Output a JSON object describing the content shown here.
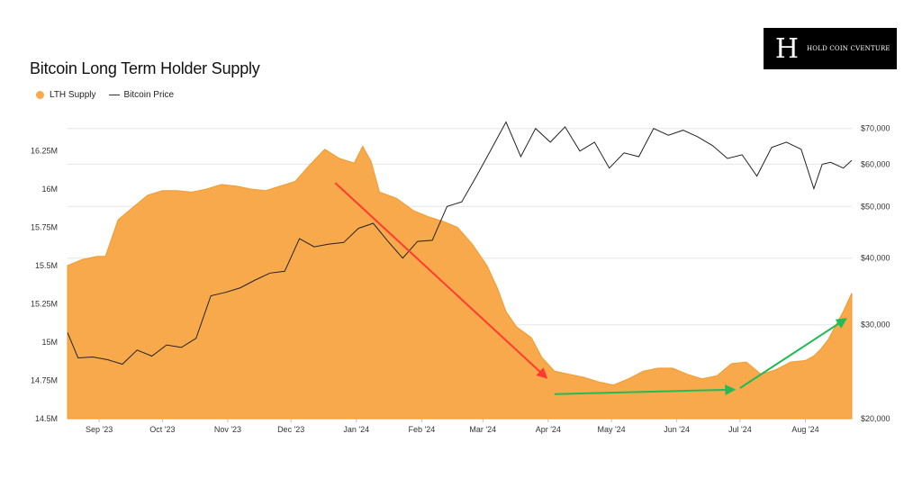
{
  "title": "Bitcoin Long Term Holder Supply",
  "logo": {
    "text": "HOLD COIN CVENTURE"
  },
  "legend": {
    "lth": "LTH Supply",
    "price": "Bitcoin Price"
  },
  "colors": {
    "lth_fill": "#f7a94c",
    "price_line": "#222222",
    "arrow_red": "#ff3b30",
    "arrow_green": "#22bb55",
    "grid": "#e6e6e6"
  },
  "chart_data": {
    "type": "area",
    "title": "Bitcoin Long Term Holder Supply",
    "x_ticks": [
      "Sep '23",
      "Oct '23",
      "Nov '23",
      "Dec '23",
      "Jan '24",
      "Feb '24",
      "Mar '24",
      "Apr '24",
      "May '24",
      "Jun '24",
      "Jul '24",
      "Aug '24"
    ],
    "x_range": [
      "2023-08-17",
      "2024-08-23"
    ],
    "y_left": {
      "ticks": [
        "14.5M",
        "14.75M",
        "15M",
        "15.25M",
        "15.5M",
        "15.75M",
        "16M",
        "16.25M"
      ],
      "ylim": [
        14.5,
        16.5
      ],
      "unit": "M BTC"
    },
    "y_right": {
      "ticks": [
        "$20,000",
        "$30,000",
        "$40,000",
        "$50,000",
        "$60,000",
        "$70,000"
      ],
      "ylim": [
        20000,
        75000
      ],
      "scale": "log"
    },
    "grid": true,
    "legend_position": "top-left",
    "series": [
      {
        "name": "LTH Supply",
        "type": "area",
        "axis": "left",
        "x": [
          "2023-08-17",
          "2023-08-24",
          "2023-08-31",
          "2023-09-04",
          "2023-09-10",
          "2023-09-17",
          "2023-09-24",
          "2023-10-01",
          "2023-10-08",
          "2023-10-15",
          "2023-10-22",
          "2023-10-29",
          "2023-11-05",
          "2023-11-12",
          "2023-11-19",
          "2023-11-26",
          "2023-12-03",
          "2023-12-10",
          "2023-12-17",
          "2023-12-24",
          "2023-12-31",
          "2024-01-04",
          "2024-01-08",
          "2024-01-12",
          "2024-01-20",
          "2024-01-28",
          "2024-02-04",
          "2024-02-11",
          "2024-02-18",
          "2024-02-25",
          "2024-03-03",
          "2024-03-08",
          "2024-03-12",
          "2024-03-17",
          "2024-03-24",
          "2024-03-29",
          "2024-04-04",
          "2024-04-11",
          "2024-04-18",
          "2024-04-25",
          "2024-05-02",
          "2024-05-09",
          "2024-05-16",
          "2024-05-23",
          "2024-05-30",
          "2024-06-06",
          "2024-06-13",
          "2024-06-20",
          "2024-06-27",
          "2024-07-04",
          "2024-07-11",
          "2024-07-18",
          "2024-07-25",
          "2024-08-01",
          "2024-08-05",
          "2024-08-08",
          "2024-08-12",
          "2024-08-15",
          "2024-08-19",
          "2024-08-23"
        ],
        "values": [
          15.5,
          15.54,
          15.56,
          15.56,
          15.8,
          15.88,
          15.96,
          15.99,
          15.99,
          15.98,
          16.0,
          16.03,
          16.02,
          16.0,
          15.99,
          16.02,
          16.05,
          16.16,
          16.26,
          16.2,
          16.17,
          16.28,
          16.18,
          15.98,
          15.94,
          15.86,
          15.82,
          15.79,
          15.75,
          15.64,
          15.5,
          15.35,
          15.2,
          15.1,
          15.03,
          14.9,
          14.81,
          14.79,
          14.77,
          14.74,
          14.72,
          14.76,
          14.81,
          14.83,
          14.83,
          14.79,
          14.76,
          14.78,
          14.86,
          14.87,
          14.79,
          14.82,
          14.87,
          14.88,
          14.91,
          14.95,
          15.02,
          15.1,
          15.2,
          15.32
        ]
      },
      {
        "name": "Bitcoin Price",
        "type": "line",
        "axis": "right",
        "x": [
          "2023-08-17",
          "2023-08-22",
          "2023-08-29",
          "2023-09-05",
          "2023-09-12",
          "2023-09-19",
          "2023-09-26",
          "2023-10-03",
          "2023-10-10",
          "2023-10-17",
          "2023-10-24",
          "2023-10-31",
          "2023-11-07",
          "2023-11-14",
          "2023-11-21",
          "2023-11-28",
          "2023-12-05",
          "2023-12-12",
          "2023-12-19",
          "2023-12-26",
          "2024-01-02",
          "2024-01-09",
          "2024-01-16",
          "2024-01-23",
          "2024-01-30",
          "2024-02-06",
          "2024-02-13",
          "2024-02-20",
          "2024-02-27",
          "2024-03-05",
          "2024-03-12",
          "2024-03-19",
          "2024-03-26",
          "2024-04-02",
          "2024-04-09",
          "2024-04-16",
          "2024-04-23",
          "2024-04-30",
          "2024-05-07",
          "2024-05-14",
          "2024-05-21",
          "2024-05-28",
          "2024-06-04",
          "2024-06-11",
          "2024-06-18",
          "2024-06-25",
          "2024-07-02",
          "2024-07-09",
          "2024-07-16",
          "2024-07-23",
          "2024-07-30",
          "2024-08-05",
          "2024-08-09",
          "2024-08-13",
          "2024-08-19",
          "2024-08-23"
        ],
        "values": [
          29000,
          26000,
          26100,
          25800,
          25300,
          26900,
          26200,
          27500,
          27200,
          28300,
          34000,
          34500,
          35200,
          36400,
          37500,
          37800,
          43500,
          42000,
          42500,
          42800,
          45500,
          46500,
          43000,
          40000,
          43000,
          43200,
          50000,
          51000,
          57000,
          64000,
          72000,
          62000,
          70000,
          66000,
          70500,
          63500,
          66000,
          59000,
          63000,
          62000,
          70000,
          68000,
          69500,
          67500,
          65000,
          61500,
          62500,
          57000,
          64500,
          66000,
          64000,
          54000,
          60000,
          60500,
          59000,
          61000
        ]
      }
    ],
    "annotations": [
      {
        "type": "arrow",
        "color": "red",
        "from": [
          "2023-12-22",
          16.04
        ],
        "to": [
          "2024-03-31",
          14.77
        ]
      },
      {
        "type": "arrow",
        "color": "green",
        "from": [
          "2024-04-04",
          14.66
        ],
        "to": [
          "2024-06-28",
          14.69
        ]
      },
      {
        "type": "arrow",
        "color": "green",
        "from": [
          "2024-07-01",
          14.7
        ],
        "to": [
          "2024-08-20",
          15.15
        ]
      }
    ]
  }
}
